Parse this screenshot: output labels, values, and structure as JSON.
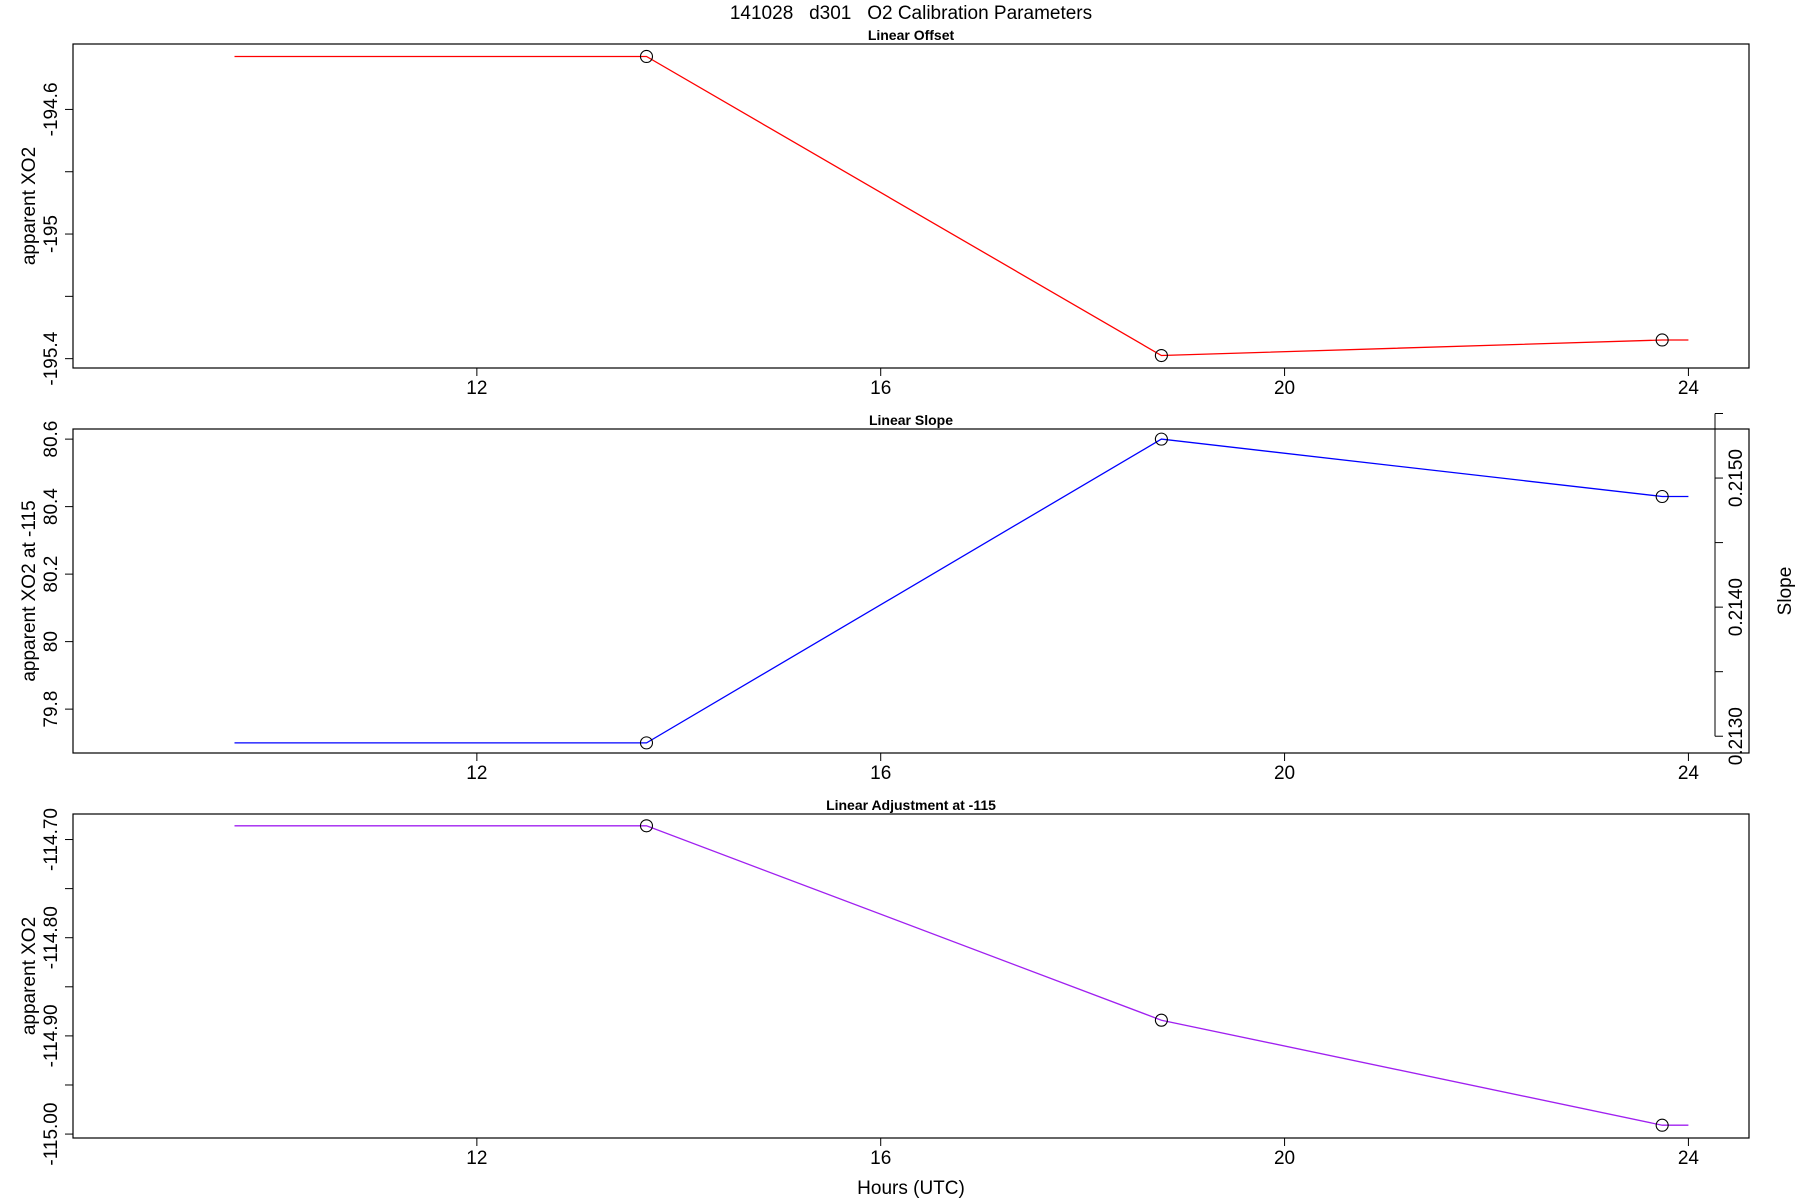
{
  "figure": {
    "title": "141028   d301   O2 Calibration Parameters",
    "xlabel": "Hours (UTC)"
  },
  "chart_data": [
    {
      "type": "line",
      "title": "Linear Offset",
      "xlabel": "",
      "ylabel": "apparent XO2",
      "xlim": [
        8.0,
        24.6
      ],
      "ylim": [
        -195.43,
        -194.39
      ],
      "x_ticks": [
        12,
        16,
        20,
        24
      ],
      "y_ticks": [
        -195.4,
        -195.2,
        -195.0,
        -194.8,
        -194.6
      ],
      "y_tick_labels": [
        -195.4,
        -195.0,
        -194.6
      ],
      "grid": false,
      "color": "#ff0000",
      "series": [
        {
          "x": [
            9.6,
            13.68,
            18.78,
            23.74,
            24.0
          ],
          "y": [
            -194.43,
            -194.43,
            -195.39,
            -195.34,
            -195.34
          ],
          "markers": [
            false,
            true,
            true,
            true,
            false
          ]
        }
      ]
    },
    {
      "type": "line",
      "title": "Linear Slope",
      "xlabel": "",
      "ylabel": "apparent XO2 at -115",
      "ylabel_right": "Slope",
      "xlim": [
        8.0,
        24.6
      ],
      "ylim": [
        79.67,
        80.63
      ],
      "ylim_right": [
        0.21287,
        0.21538
      ],
      "x_ticks": [
        12,
        16,
        20,
        24
      ],
      "y_ticks": [
        79.8,
        80.0,
        80.2,
        80.4,
        80.6
      ],
      "y_tick_labels": [
        79.8,
        80.0,
        80.2,
        80.4,
        80.6
      ],
      "y_ticks_right": [
        0.213,
        0.2135,
        0.214,
        0.2145,
        0.215,
        0.2155
      ],
      "y_tick_labels_right": [
        0.213,
        0.214,
        0.215
      ],
      "grid": false,
      "color": "#0000ff",
      "series": [
        {
          "x": [
            9.6,
            13.68,
            18.78,
            23.74,
            24.0
          ],
          "y": [
            79.7,
            79.7,
            80.6,
            80.43,
            80.43
          ],
          "markers": [
            false,
            true,
            true,
            true,
            false
          ]
        }
      ]
    },
    {
      "type": "line",
      "title": "Linear Adjustment at -115",
      "xlabel": "Hours (UTC)",
      "ylabel": "apparent XO2",
      "xlim": [
        8.0,
        24.6
      ],
      "ylim": [
        -115.004,
        -114.674
      ],
      "x_ticks": [
        12,
        16,
        20,
        24
      ],
      "y_ticks": [
        -115.0,
        -114.95,
        -114.9,
        -114.85,
        -114.8,
        -114.75,
        -114.7
      ],
      "y_tick_labels": [
        "-115.00",
        "-114.90",
        "-114.80",
        "-114.70"
      ],
      "grid": false,
      "color": "#a020f0",
      "series": [
        {
          "x": [
            9.6,
            13.68,
            18.78,
            23.74,
            24.0
          ],
          "y": [
            -114.686,
            -114.686,
            -114.884,
            -114.991,
            -114.991
          ],
          "markers": [
            false,
            true,
            true,
            true,
            false
          ]
        }
      ]
    }
  ]
}
